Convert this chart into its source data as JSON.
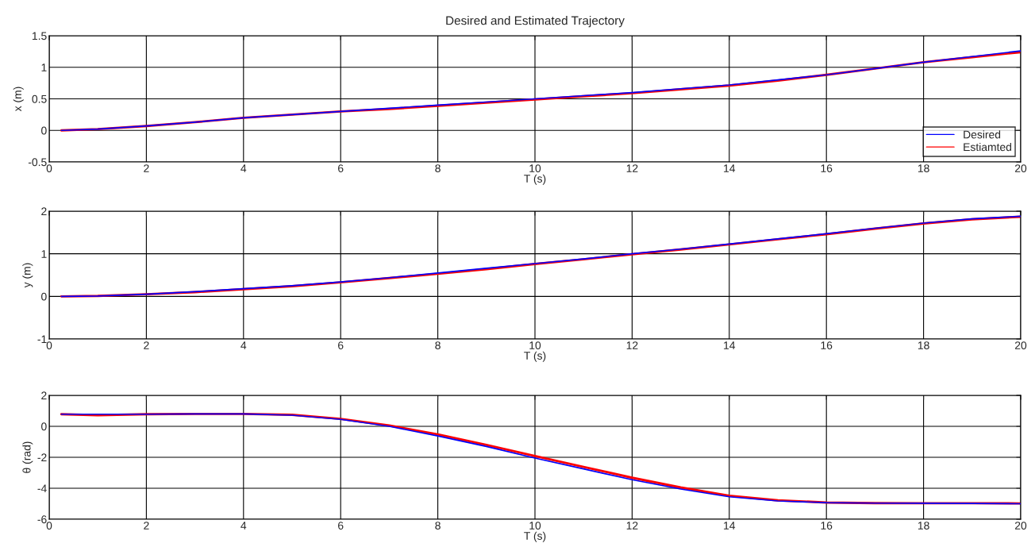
{
  "chart_data": [
    {
      "type": "line",
      "title": "Desired and Estimated Trajectory",
      "xlabel": "T (s)",
      "ylabel": "x (m)",
      "xlim": [
        0,
        20
      ],
      "xticks": [
        0,
        2,
        4,
        6,
        8,
        10,
        12,
        14,
        16,
        18,
        20
      ],
      "ylim": [
        -0.5,
        1.5
      ],
      "yticks": [
        -0.5,
        0,
        0.5,
        1,
        1.5
      ],
      "grid": true,
      "legend": "bottom right",
      "x": [
        0.25,
        1,
        2,
        3,
        4,
        5,
        6,
        7,
        8,
        9,
        10,
        11,
        12,
        13,
        14,
        15,
        16,
        17,
        18,
        19,
        20
      ],
      "series": [
        {
          "name": "Desired",
          "color": "#0000ff",
          "values": [
            0,
            0.02,
            0.07,
            0.13,
            0.2,
            0.25,
            0.3,
            0.35,
            0.4,
            0.45,
            0.5,
            0.55,
            0.6,
            0.66,
            0.72,
            0.8,
            0.88,
            0.98,
            1.08,
            1.17,
            1.26
          ]
        },
        {
          "name": "Estiamted",
          "color": "#ff0000",
          "values": [
            0,
            0.02,
            0.07,
            0.13,
            0.2,
            0.25,
            0.3,
            0.34,
            0.39,
            0.44,
            0.49,
            0.54,
            0.59,
            0.65,
            0.71,
            0.79,
            0.88,
            0.98,
            1.08,
            1.16,
            1.24
          ]
        }
      ]
    },
    {
      "type": "line",
      "xlabel": "T (s)",
      "ylabel": "y (m)",
      "xlim": [
        0,
        20
      ],
      "xticks": [
        0,
        2,
        4,
        6,
        8,
        10,
        12,
        14,
        16,
        18,
        20
      ],
      "ylim": [
        -1,
        2
      ],
      "yticks": [
        -1,
        0,
        1,
        2
      ],
      "grid": true,
      "x": [
        0.25,
        1,
        2,
        3,
        4,
        5,
        6,
        7,
        8,
        9,
        10,
        11,
        12,
        13,
        14,
        15,
        16,
        17,
        18,
        19,
        20
      ],
      "series": [
        {
          "color": "#0000ff",
          "values": [
            0,
            0.01,
            0.05,
            0.11,
            0.18,
            0.25,
            0.34,
            0.44,
            0.55,
            0.66,
            0.77,
            0.88,
            1.0,
            1.11,
            1.23,
            1.35,
            1.47,
            1.6,
            1.72,
            1.82,
            1.88
          ]
        },
        {
          "color": "#ff0000",
          "values": [
            0,
            0.01,
            0.05,
            0.1,
            0.17,
            0.24,
            0.33,
            0.43,
            0.53,
            0.64,
            0.76,
            0.87,
            0.99,
            1.1,
            1.22,
            1.34,
            1.46,
            1.59,
            1.71,
            1.81,
            1.87
          ]
        }
      ]
    },
    {
      "type": "line",
      "xlabel": "T (s)",
      "ylabel": "θ (rad)",
      "xlim": [
        0,
        20
      ],
      "xticks": [
        0,
        2,
        4,
        6,
        8,
        10,
        12,
        14,
        16,
        18,
        20
      ],
      "ylim": [
        -6,
        2
      ],
      "yticks": [
        -6,
        -4,
        -2,
        0,
        2
      ],
      "grid": true,
      "x": [
        0.25,
        1,
        2,
        3,
        4,
        5,
        6,
        7,
        8,
        9,
        10,
        11,
        12,
        13,
        14,
        15,
        16,
        17,
        18,
        19,
        20
      ],
      "series": [
        {
          "color": "#0000ff",
          "values": [
            0.78,
            0.78,
            0.78,
            0.8,
            0.8,
            0.72,
            0.45,
            0.0,
            -0.62,
            -1.3,
            -2.05,
            -2.75,
            -3.45,
            -4.05,
            -4.55,
            -4.82,
            -4.93,
            -4.96,
            -4.97,
            -4.98,
            -5.0
          ]
        },
        {
          "color": "#ff0000",
          "values": [
            0.78,
            0.72,
            0.78,
            0.8,
            0.8,
            0.74,
            0.48,
            0.05,
            -0.52,
            -1.2,
            -1.92,
            -2.62,
            -3.32,
            -3.95,
            -4.48,
            -4.78,
            -4.92,
            -4.96,
            -4.97,
            -4.97,
            -4.98
          ]
        }
      ]
    }
  ]
}
